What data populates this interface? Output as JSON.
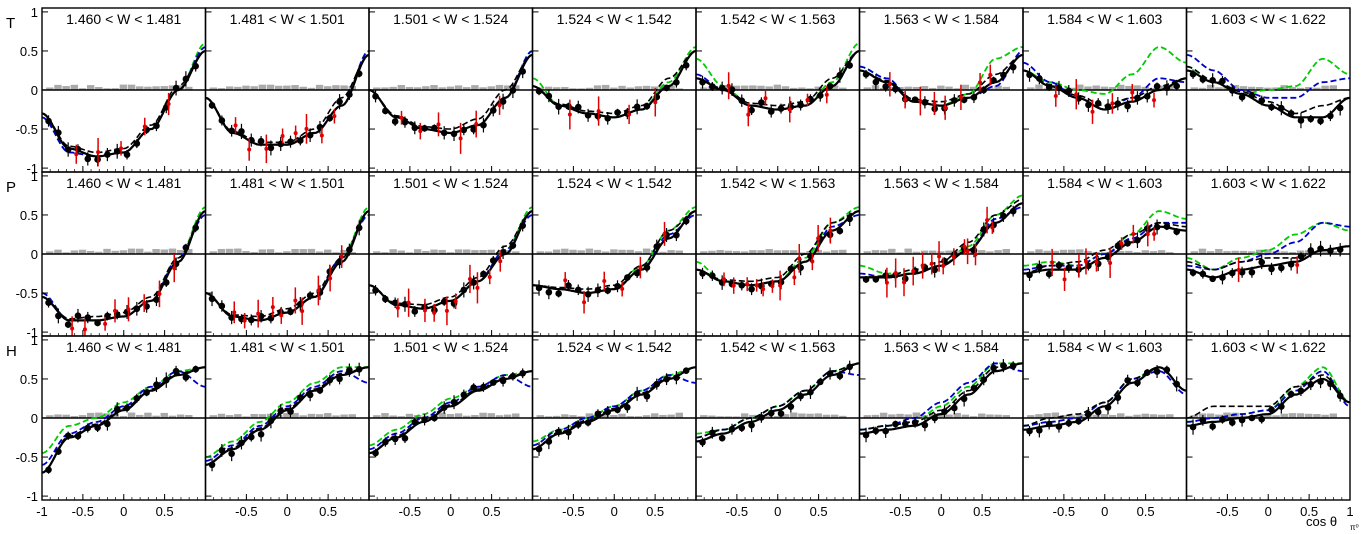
{
  "chart_data": {
    "type": "scatter",
    "xlabel_main": "cos θ",
    "xlabel_sub": "π⁰",
    "xlim": [
      -1,
      1
    ],
    "ylim": [
      -1.05,
      1.05
    ],
    "x_ticks": [
      "-1",
      "-0.5",
      "0",
      "0.5",
      "1"
    ],
    "y_ticks": [
      "-1",
      "-0.5",
      "0",
      "0.5",
      "1"
    ],
    "observables": [
      "T",
      "P",
      "H"
    ],
    "bins": [
      "1.460 < W < 1.481",
      "1.481 < W < 1.501",
      "1.501 < W < 1.524",
      "1.524 < W < 1.542",
      "1.542 < W < 1.563",
      "1.563 < W < 1.584",
      "1.584 < W < 1.603",
      "1.603 < W < 1.622"
    ],
    "colors": {
      "data_black": "#000000",
      "data_red": "#e00000",
      "model_solid": "#000000",
      "model_dashed_black": "#000000",
      "model_blue": "#0000cc",
      "model_green": "#00cc00",
      "systematics": "#aaaaaa"
    },
    "panels": [
      [
        {
          "shape": [
            -0.3,
            -0.75,
            -0.85,
            -0.8,
            -0.5,
            0.0,
            0.5
          ],
          "blue": [
            -0.05,
            -0.05,
            0,
            0,
            0,
            0,
            0.05
          ],
          "green": [
            -0.05,
            -0.05,
            0,
            0,
            0,
            0,
            0.1
          ],
          "dashed": [
            0,
            0.03,
            0.05,
            0.05,
            0.05,
            0.05,
            0.0
          ],
          "red_n": 5
        },
        {
          "shape": [
            -0.1,
            -0.55,
            -0.7,
            -0.7,
            -0.55,
            -0.2,
            0.45
          ],
          "blue": [
            0,
            0,
            0,
            0,
            0,
            0,
            0.05
          ],
          "green": [
            0,
            0,
            0,
            0,
            0,
            0,
            0.05
          ],
          "dashed": [
            0,
            0.02,
            0.03,
            0.03,
            0.05,
            0.1,
            0.0
          ],
          "red_n": 8
        },
        {
          "shape": [
            0.0,
            -0.35,
            -0.5,
            -0.55,
            -0.45,
            -0.1,
            0.45
          ],
          "blue": [
            0,
            0,
            0,
            0,
            0,
            0,
            0.05
          ],
          "green": [
            0,
            0,
            0,
            0,
            0,
            0,
            0.05
          ],
          "dashed": [
            0,
            0.02,
            0.03,
            0.05,
            0.08,
            0.1,
            0.0
          ],
          "red_n": 6
        },
        {
          "shape": [
            0.05,
            -0.2,
            -0.3,
            -0.35,
            -0.25,
            0.05,
            0.5
          ],
          "blue": [
            0,
            0,
            0,
            0,
            0,
            0,
            0
          ],
          "green": [
            0.1,
            0,
            0,
            0,
            0,
            0.05,
            0.05
          ],
          "dashed": [
            0,
            0.02,
            0.03,
            0.05,
            0.05,
            0.1,
            0.0
          ],
          "red_n": 4
        },
        {
          "shape": [
            0.15,
            0.0,
            -0.2,
            -0.25,
            -0.2,
            0.05,
            0.5
          ],
          "blue": [
            0.05,
            0,
            0,
            0,
            0,
            0,
            0
          ],
          "green": [
            0.25,
            0.05,
            0,
            0,
            0,
            0.05,
            0.1
          ],
          "dashed": [
            0,
            0.02,
            0.03,
            0.05,
            0.05,
            0.1,
            0.0
          ],
          "red_n": 6
        },
        {
          "shape": [
            0.25,
            0.1,
            -0.15,
            -0.2,
            -0.1,
            0.1,
            0.45
          ],
          "blue": [
            0.05,
            0.05,
            0,
            0,
            0,
            -0.05,
            0.05
          ],
          "green": [
            0.05,
            0.05,
            0,
            0,
            0.05,
            0.3,
            0.1
          ],
          "dashed": [
            0,
            0.02,
            0.03,
            0.05,
            0.05,
            0.1,
            0.0
          ],
          "red_n": 8
        },
        {
          "shape": [
            0.25,
            0.05,
            -0.1,
            -0.25,
            -0.15,
            0.0,
            0.15
          ],
          "blue": [
            0.1,
            0.05,
            0,
            0,
            0.05,
            0.15,
            -0.05
          ],
          "green": [
            0.0,
            0.05,
            0.1,
            0.2,
            0.35,
            0.55,
            0.2
          ],
          "dashed": [
            0,
            0.02,
            0.03,
            0.05,
            0.05,
            0.05,
            0.0
          ],
          "red_n": 6
        },
        {
          "shape": [
            0.25,
            0.1,
            -0.05,
            -0.2,
            -0.35,
            -0.35,
            -0.1
          ],
          "blue": [
            0.2,
            0.15,
            0.05,
            0.1,
            0.25,
            0.45,
            0.25
          ],
          "green": [
            0.05,
            0.0,
            0.0,
            0.2,
            0.4,
            0.75,
            0.3
          ],
          "dashed": [
            0.05,
            0.02,
            0.03,
            0.05,
            0.05,
            0.15,
            0.0
          ],
          "red_n": 0
        }
      ],
      [
        {
          "shape": [
            -0.55,
            -0.85,
            -0.85,
            -0.8,
            -0.6,
            -0.1,
            0.55
          ],
          "blue": [
            0.05,
            0,
            0,
            0,
            0,
            0.05,
            -0.05
          ],
          "green": [
            0.05,
            0,
            0,
            0,
            0,
            0.05,
            0.05
          ],
          "dashed": [
            0,
            0.02,
            0.05,
            0.05,
            0.05,
            0.05,
            0.0
          ],
          "red_n": 8
        },
        {
          "shape": [
            -0.5,
            -0.8,
            -0.85,
            -0.75,
            -0.55,
            -0.1,
            0.55
          ],
          "blue": [
            0,
            0,
            0,
            0,
            0,
            0.05,
            -0.05
          ],
          "green": [
            0,
            0,
            0,
            0,
            0,
            0.05,
            0.05
          ],
          "dashed": [
            0,
            0.02,
            0.05,
            0.05,
            0.05,
            0.05,
            0.0
          ],
          "red_n": 10
        },
        {
          "shape": [
            -0.4,
            -0.65,
            -0.7,
            -0.6,
            -0.35,
            0.0,
            0.55
          ],
          "blue": [
            0,
            0,
            0,
            0,
            0,
            0.05,
            -0.05
          ],
          "green": [
            0,
            0,
            0,
            0,
            0,
            0.05,
            0.05
          ],
          "dashed": [
            0,
            0.02,
            0.05,
            0.05,
            0.05,
            0.1,
            0.0
          ],
          "red_n": 10
        },
        {
          "shape": [
            -0.4,
            -0.45,
            -0.5,
            -0.45,
            -0.2,
            0.2,
            0.55
          ],
          "blue": [
            0,
            0,
            0,
            0,
            0,
            0.05,
            -0.05
          ],
          "green": [
            0,
            0,
            0,
            0,
            0.05,
            0.1,
            0.05
          ],
          "dashed": [
            0,
            0.02,
            0.05,
            0.05,
            0.05,
            0.1,
            0.0
          ],
          "red_n": 6
        },
        {
          "shape": [
            -0.2,
            -0.35,
            -0.4,
            -0.35,
            -0.1,
            0.3,
            0.55
          ],
          "blue": [
            0,
            0,
            0,
            0,
            0,
            0.05,
            -0.05
          ],
          "green": [
            0.1,
            0,
            0,
            0,
            0.05,
            0.1,
            0.05
          ],
          "dashed": [
            0,
            0.02,
            0.05,
            0.05,
            0.1,
            0.1,
            0.0
          ],
          "red_n": 12
        },
        {
          "shape": [
            -0.3,
            -0.3,
            -0.25,
            -0.15,
            0.05,
            0.4,
            0.65
          ],
          "blue": [
            0.05,
            0,
            0,
            0,
            0,
            0.05,
            -0.05
          ],
          "green": [
            0.15,
            0.05,
            0,
            0,
            0.05,
            0.1,
            0.1
          ],
          "dashed": [
            0,
            0.02,
            0.05,
            0.05,
            0.1,
            0.1,
            0.05
          ],
          "red_n": 14
        },
        {
          "shape": [
            -0.25,
            -0.2,
            -0.2,
            -0.05,
            0.15,
            0.35,
            0.3
          ],
          "blue": [
            0.05,
            0.05,
            0.05,
            0.05,
            0.05,
            0.05,
            0.1
          ],
          "green": [
            0.1,
            0.1,
            0.05,
            0.05,
            0.1,
            0.2,
            0.15
          ],
          "dashed": [
            0,
            0.05,
            0.1,
            0.1,
            0.1,
            0.05,
            0.05
          ],
          "red_n": 10
        },
        {
          "shape": [
            -0.2,
            -0.3,
            -0.2,
            -0.15,
            -0.1,
            0.05,
            0.1
          ],
          "blue": [
            0.05,
            0.1,
            0.1,
            0.15,
            0.25,
            0.35,
            0.25
          ],
          "green": [
            0.15,
            0.1,
            0.15,
            0.2,
            0.35,
            0.35,
            0.2
          ],
          "dashed": [
            0.1,
            0.1,
            0.1,
            0.1,
            0.05,
            0.0,
            0.0
          ],
          "red_n": 2
        }
      ],
      [
        {
          "shape": [
            -0.7,
            -0.25,
            -0.1,
            0.1,
            0.35,
            0.55,
            0.65
          ],
          "blue": [
            0.1,
            0.05,
            0.05,
            0.05,
            0.05,
            0.05,
            -0.25
          ],
          "green": [
            0.25,
            0.15,
            0.1,
            0.1,
            0.05,
            0.05,
            0.0
          ],
          "dashed": [
            0,
            0.02,
            0.02,
            0.02,
            0.02,
            0.02,
            0.0
          ],
          "red_n": 0
        },
        {
          "shape": [
            -0.6,
            -0.4,
            -0.15,
            0.1,
            0.35,
            0.55,
            0.65
          ],
          "blue": [
            0.05,
            0.05,
            0.05,
            0.05,
            0.05,
            0.05,
            -0.2
          ],
          "green": [
            0.1,
            0.1,
            0.1,
            0.1,
            0.1,
            0.1,
            0.0
          ],
          "dashed": [
            0,
            0.02,
            0.02,
            0.02,
            0.02,
            0.02,
            0.0
          ],
          "red_n": 0
        },
        {
          "shape": [
            -0.45,
            -0.25,
            -0.05,
            0.15,
            0.35,
            0.5,
            0.6
          ],
          "blue": [
            0.05,
            0.05,
            0.05,
            0.05,
            0.05,
            0.05,
            -0.2
          ],
          "green": [
            0.1,
            0.1,
            0.1,
            0.1,
            0.05,
            0.05,
            0.0
          ],
          "dashed": [
            0,
            0.02,
            0.02,
            0.02,
            0.02,
            0.02,
            0.0
          ],
          "red_n": 0
        },
        {
          "shape": [
            -0.4,
            -0.2,
            -0.05,
            0.1,
            0.3,
            0.5,
            0.65
          ],
          "blue": [
            0.05,
            0.05,
            0.05,
            0.05,
            0.05,
            0.05,
            -0.2
          ],
          "green": [
            0.1,
            0.05,
            0.05,
            0.05,
            0.05,
            0.05,
            0.0
          ],
          "dashed": [
            0,
            0.02,
            0.02,
            0.02,
            0.02,
            0.02,
            0.0
          ],
          "red_n": 0
        },
        {
          "shape": [
            -0.3,
            -0.2,
            -0.05,
            0.1,
            0.3,
            0.55,
            0.7
          ],
          "blue": [
            0.05,
            0.05,
            0.05,
            0.05,
            0.05,
            0.05,
            -0.15
          ],
          "green": [
            0.1,
            0.05,
            0.05,
            0.05,
            0.05,
            0.05,
            0.0
          ],
          "dashed": [
            0.05,
            0.05,
            0.05,
            0.05,
            0.05,
            0.05,
            0.0
          ],
          "red_n": 0
        },
        {
          "shape": [
            -0.2,
            -0.15,
            -0.1,
            0.05,
            0.3,
            0.6,
            0.7
          ],
          "blue": [
            0.05,
            0.05,
            0.1,
            0.15,
            0.15,
            0.1,
            -0.1
          ],
          "green": [
            0.05,
            0.05,
            0.05,
            0.1,
            0.1,
            0.1,
            0.0
          ],
          "dashed": [
            0.05,
            0.05,
            0.05,
            0.05,
            0.05,
            0.05,
            0.0
          ],
          "red_n": 0
        },
        {
          "shape": [
            -0.15,
            -0.1,
            -0.05,
            0.15,
            0.45,
            0.65,
            0.35
          ],
          "blue": [
            0.05,
            0.05,
            0.05,
            0.05,
            0.05,
            -0.05,
            -0.05
          ],
          "green": [
            0.05,
            0.05,
            0.05,
            0.05,
            0.05,
            0.0,
            0.0
          ],
          "dashed": [
            0.05,
            0.1,
            0.1,
            0.05,
            0.05,
            0.0,
            0.0
          ],
          "red_n": 0
        },
        {
          "shape": [
            -0.1,
            -0.05,
            0.0,
            0.05,
            0.3,
            0.5,
            0.2
          ],
          "blue": [
            0.05,
            0.05,
            0.05,
            0.05,
            0.05,
            0.1,
            -0.05
          ],
          "green": [
            0.05,
            0.05,
            0.05,
            0.05,
            0.1,
            0.15,
            0.0
          ],
          "dashed": [
            0.1,
            0.2,
            0.15,
            0.1,
            0.1,
            0.05,
            0.0
          ],
          "red_n": 0
        }
      ]
    ]
  }
}
